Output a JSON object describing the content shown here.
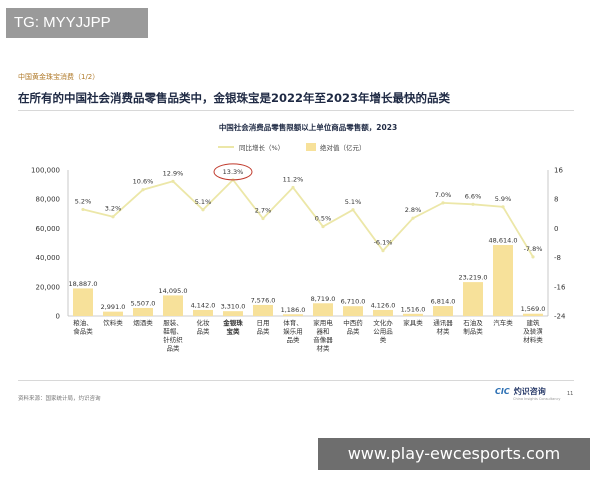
{
  "watermark": "TG: MYYJJPP",
  "section_label": "中国黄金珠宝消费（1/2）",
  "headline": "在所有的中国社会消费品零售品类中，金银珠宝是2022年至2023年增长最快的品类",
  "source_note": "资料来源：国家统计局，灼识咨询",
  "logo_mark": "CIC",
  "logo_text": "灼识咨询",
  "logo_sub": "China Insights Consultancy",
  "page_number": "11",
  "footer_url": "www.play-ewcesports.com",
  "colors": {
    "bar": "#f7e19a",
    "line": "#ece7a8",
    "highlight_circle": "#c0392b",
    "accent": "#b07a2a"
  },
  "chart_data": {
    "type": "bar",
    "title": "中国社会消费品零售限额以上单位商品零售额，2023",
    "categories": [
      [
        "粮油、",
        "食品类"
      ],
      [
        "饮料类"
      ],
      [
        "烟酒类"
      ],
      [
        "服装、",
        "鞋帽、",
        "针纺织",
        "品类"
      ],
      [
        "化妆",
        "品类"
      ],
      [
        "金银珠",
        "宝类"
      ],
      [
        "日用",
        "品类"
      ],
      [
        "体育、",
        "娱乐用",
        "品类"
      ],
      [
        "家用电",
        "器和",
        "音像器",
        "材类"
      ],
      [
        "中西药",
        "品类"
      ],
      [
        "文化办",
        "公用品",
        "类"
      ],
      [
        "家具类"
      ],
      [
        "通讯器",
        "材类"
      ],
      [
        "石油及",
        "制品类"
      ],
      [
        "汽车类"
      ],
      [
        "建筑",
        "及装潢",
        "材料类"
      ]
    ],
    "highlight_index": 5,
    "legend": [
      "同比增长（%）",
      "绝对值（亿元）"
    ],
    "legend_position": "top-center",
    "series": [
      {
        "name": "绝对值（亿元）",
        "type": "bar",
        "axis": "left",
        "values": [
          18887.0,
          2991.0,
          5507.0,
          14095.0,
          4142.0,
          3310.0,
          7576.0,
          1186.0,
          8719.0,
          6710.0,
          4126.0,
          1516.0,
          6814.0,
          23219.0,
          48614.0,
          1569.0
        ],
        "labels": [
          "18,887.0",
          "2,991.0",
          "5,507.0",
          "14,095.0",
          "4,142.0",
          "3,310.0",
          "7,576.0",
          "1,186.0",
          "8,719.0",
          "6,710.0",
          "4,126.0",
          "1,516.0",
          "6,814.0",
          "23,219.0",
          "48,614.0",
          "1,569.0"
        ]
      },
      {
        "name": "同比增长（%）",
        "type": "line",
        "axis": "right",
        "values": [
          5.2,
          3.2,
          10.6,
          12.9,
          5.1,
          13.3,
          2.7,
          11.2,
          0.5,
          5.1,
          -6.1,
          2.8,
          7.0,
          6.6,
          5.9,
          -7.8
        ],
        "labels": [
          "5.2%",
          "3.2%",
          "10.6%",
          "12.9%",
          "5.1%",
          "13.3%",
          "2.7%",
          "11.2%",
          "0.5%",
          "5.1%",
          "-6.1%",
          "2.8%",
          "7.0%",
          "6.6%",
          "5.9%",
          "-7.8%"
        ]
      }
    ],
    "y_left": {
      "min": 0,
      "max": 100000,
      "ticks": [
        "0",
        "20,000",
        "40,000",
        "60,000",
        "80,000",
        "100,000"
      ]
    },
    "y_right": {
      "min": -24,
      "max": 16,
      "ticks": [
        "-24",
        "-16",
        "-8",
        "0",
        "8",
        "16"
      ]
    },
    "grid": false
  }
}
